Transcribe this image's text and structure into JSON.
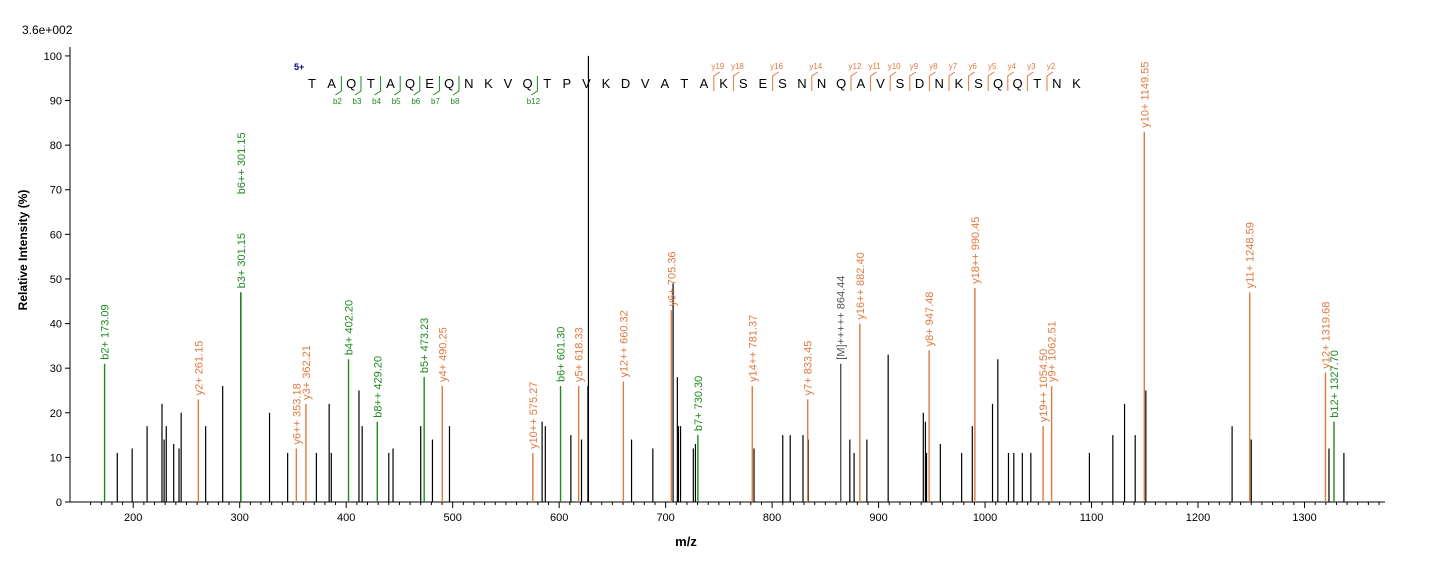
{
  "chart_data": {
    "type": "bar",
    "scale_label": "3.6e+002",
    "xlabel": "m/z",
    "ylabel": "Relative   Intensity (%)",
    "xlim": [
      150,
      1385
    ],
    "ylim": [
      0,
      102
    ],
    "x_ticks": [
      200,
      300,
      400,
      500,
      600,
      700,
      800,
      900,
      1000,
      1100,
      1200,
      1300
    ],
    "y_ticks": [
      0,
      10,
      20,
      30,
      40,
      50,
      60,
      70,
      80,
      90,
      100
    ],
    "colors": {
      "b": "#1e8a1e",
      "y": "#e07a40",
      "precursor": "#555555",
      "unassigned": "#000000"
    },
    "unassigned_peaks": [
      {
        "mz": 185,
        "i": 11
      },
      {
        "mz": 199,
        "i": 12
      },
      {
        "mz": 213,
        "i": 17
      },
      {
        "mz": 227,
        "i": 22
      },
      {
        "mz": 229,
        "i": 14
      },
      {
        "mz": 231,
        "i": 17
      },
      {
        "mz": 238,
        "i": 13
      },
      {
        "mz": 243,
        "i": 12
      },
      {
        "mz": 245,
        "i": 20
      },
      {
        "mz": 268,
        "i": 17
      },
      {
        "mz": 284,
        "i": 26
      },
      {
        "mz": 301,
        "i": 47
      },
      {
        "mz": 328,
        "i": 20
      },
      {
        "mz": 345,
        "i": 11
      },
      {
        "mz": 372,
        "i": 11
      },
      {
        "mz": 384,
        "i": 22
      },
      {
        "mz": 386,
        "i": 11
      },
      {
        "mz": 412,
        "i": 25
      },
      {
        "mz": 415,
        "i": 17
      },
      {
        "mz": 440,
        "i": 11
      },
      {
        "mz": 444,
        "i": 12
      },
      {
        "mz": 470,
        "i": 17
      },
      {
        "mz": 481,
        "i": 14
      },
      {
        "mz": 497,
        "i": 17
      },
      {
        "mz": 584,
        "i": 18
      },
      {
        "mz": 587,
        "i": 17
      },
      {
        "mz": 611,
        "i": 15
      },
      {
        "mz": 621,
        "i": 14
      },
      {
        "mz": 627,
        "i": 26
      },
      {
        "mz": 627.5,
        "i": 100
      },
      {
        "mz": 668,
        "i": 14
      },
      {
        "mz": 688,
        "i": 12
      },
      {
        "mz": 707,
        "i": 49
      },
      {
        "mz": 711,
        "i": 28
      },
      {
        "mz": 712,
        "i": 17
      },
      {
        "mz": 714,
        "i": 17
      },
      {
        "mz": 726,
        "i": 12
      },
      {
        "mz": 728,
        "i": 13
      },
      {
        "mz": 783,
        "i": 12
      },
      {
        "mz": 810,
        "i": 15
      },
      {
        "mz": 817,
        "i": 15
      },
      {
        "mz": 829,
        "i": 15
      },
      {
        "mz": 834,
        "i": 14
      },
      {
        "mz": 873,
        "i": 14
      },
      {
        "mz": 877,
        "i": 11
      },
      {
        "mz": 889,
        "i": 14
      },
      {
        "mz": 909,
        "i": 33
      },
      {
        "mz": 942,
        "i": 20
      },
      {
        "mz": 944,
        "i": 18
      },
      {
        "mz": 945,
        "i": 11
      },
      {
        "mz": 958,
        "i": 13
      },
      {
        "mz": 978,
        "i": 11
      },
      {
        "mz": 988,
        "i": 17
      },
      {
        "mz": 1007,
        "i": 22
      },
      {
        "mz": 1012,
        "i": 32
      },
      {
        "mz": 1022,
        "i": 11
      },
      {
        "mz": 1027,
        "i": 11
      },
      {
        "mz": 1035,
        "i": 11
      },
      {
        "mz": 1043,
        "i": 11
      },
      {
        "mz": 1098,
        "i": 11
      },
      {
        "mz": 1120,
        "i": 15
      },
      {
        "mz": 1131,
        "i": 22
      },
      {
        "mz": 1141,
        "i": 15
      },
      {
        "mz": 1151,
        "i": 25
      },
      {
        "mz": 1232,
        "i": 17
      },
      {
        "mz": 1250,
        "i": 14
      },
      {
        "mz": 1323,
        "i": 12
      },
      {
        "mz": 1337,
        "i": 11
      }
    ],
    "labeled_peaks": [
      {
        "mz": 173.09,
        "i": 31,
        "type": "b",
        "label": "b2+ 173.09"
      },
      {
        "mz": 261.15,
        "i": 23,
        "type": "y",
        "label": "y2+ 261.15"
      },
      {
        "mz": 301.15,
        "i": 47,
        "type": "b",
        "label": "b3+ 301.15"
      },
      {
        "mz": 301.15,
        "i": 47,
        "type": "b",
        "label": "b6++ 301.15",
        "label_only": true,
        "label_y": 69
      },
      {
        "mz": 353.18,
        "i": 12,
        "type": "y",
        "label": "y6++ 353.18"
      },
      {
        "mz": 362.21,
        "i": 22,
        "type": "y",
        "label": "y3+ 362.21"
      },
      {
        "mz": 402.2,
        "i": 32,
        "type": "b",
        "label": "b4+ 402.20"
      },
      {
        "mz": 429.2,
        "i": 18,
        "type": "b",
        "label": "b8++ 429.20"
      },
      {
        "mz": 473.23,
        "i": 28,
        "type": "b",
        "label": "b5+ 473.23"
      },
      {
        "mz": 490.25,
        "i": 26,
        "type": "y",
        "label": "y4+ 490.25"
      },
      {
        "mz": 575.27,
        "i": 11,
        "type": "y",
        "label": "y10++ 575.27"
      },
      {
        "mz": 601.3,
        "i": 26,
        "type": "b",
        "label": "b6+ 601.30"
      },
      {
        "mz": 618.33,
        "i": 26,
        "type": "y",
        "label": "y5+ 618.33"
      },
      {
        "mz": 660.32,
        "i": 27,
        "type": "y",
        "label": "y12++ 660.32"
      },
      {
        "mz": 705.36,
        "i": 43,
        "type": "y",
        "label": "y6+ 705.36"
      },
      {
        "mz": 730.3,
        "i": 15,
        "type": "b",
        "label": "b7+ 730.30"
      },
      {
        "mz": 781.37,
        "i": 26,
        "type": "y",
        "label": "y14++ 781.37"
      },
      {
        "mz": 833.45,
        "i": 23,
        "type": "y",
        "label": "y7+ 833.45"
      },
      {
        "mz": 864.44,
        "i": 31,
        "type": "precursor",
        "label": "[M]+++++ 864.44"
      },
      {
        "mz": 882.4,
        "i": 40,
        "type": "y",
        "label": "y16++ 882.40"
      },
      {
        "mz": 947.48,
        "i": 34,
        "type": "y",
        "label": "y8+ 947.48"
      },
      {
        "mz": 990.45,
        "i": 48,
        "type": "y",
        "label": "y18++ 990.45"
      },
      {
        "mz": 1054.5,
        "i": 17,
        "type": "y",
        "label": "y19++ 1054.50"
      },
      {
        "mz": 1062.51,
        "i": 26,
        "type": "y",
        "label": "y9+ 1062.51"
      },
      {
        "mz": 1149.55,
        "i": 83,
        "type": "y",
        "label": "y10+ 1149.55"
      },
      {
        "mz": 1248.59,
        "i": 47,
        "type": "y",
        "label": "y11+ 1248.59"
      },
      {
        "mz": 1319.68,
        "i": 29,
        "type": "y",
        "label": "y12+ 1319.68"
      },
      {
        "mz": 1327.7,
        "i": 18,
        "type": "b",
        "label": "b12+ 1327.70"
      }
    ],
    "sequence": {
      "charge": "5+",
      "residues": [
        "T",
        "A",
        "Q",
        "T",
        "A",
        "Q",
        "E",
        "Q",
        "N",
        "K",
        "V",
        "Q",
        "T",
        "P",
        "V",
        "K",
        "D",
        "V",
        "A",
        "T",
        "A",
        "K",
        "S",
        "E",
        "S",
        "N",
        "N",
        "Q",
        "A",
        "V",
        "S",
        "D",
        "N",
        "K",
        "S",
        "Q",
        "Q",
        "T",
        "N",
        "K"
      ],
      "b_ions": [
        {
          "after": 2,
          "label": "b2"
        },
        {
          "after": 3,
          "label": "b3"
        },
        {
          "after": 4,
          "label": "b4"
        },
        {
          "after": 5,
          "label": "b5"
        },
        {
          "after": 6,
          "label": "b6"
        },
        {
          "after": 7,
          "label": "b7"
        },
        {
          "after": 8,
          "label": "b8"
        },
        {
          "after": 12,
          "label": "b12"
        }
      ],
      "y_ions": [
        {
          "after": 21,
          "label": "y19"
        },
        {
          "after": 22,
          "label": "y18"
        },
        {
          "after": 24,
          "label": "y16"
        },
        {
          "after": 26,
          "label": "y14"
        },
        {
          "after": 28,
          "label": "y12"
        },
        {
          "after": 29,
          "label": "y11"
        },
        {
          "after": 30,
          "label": "y10"
        },
        {
          "after": 31,
          "label": "y9"
        },
        {
          "after": 32,
          "label": "y8"
        },
        {
          "after": 33,
          "label": "y7"
        },
        {
          "after": 34,
          "label": "y6"
        },
        {
          "after": 35,
          "label": "y5"
        },
        {
          "after": 36,
          "label": "y4"
        },
        {
          "after": 37,
          "label": "y3"
        },
        {
          "after": 38,
          "label": "y2"
        }
      ]
    }
  }
}
